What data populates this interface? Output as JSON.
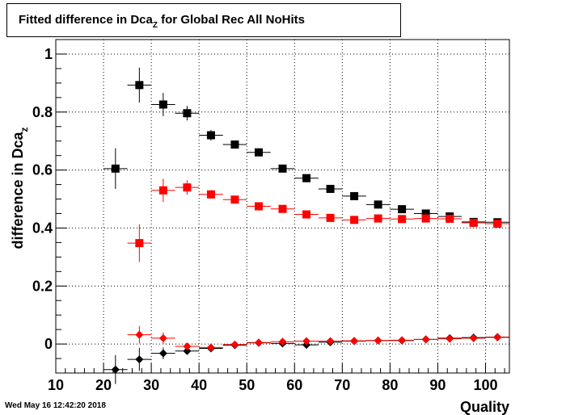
{
  "chart_data": {
    "type": "scatter",
    "title": "Fitted difference in Dca",
    "title_sub": "Z",
    "title_suffix": " for Global Rec All NoHits",
    "xlabel": "Quality",
    "ylabel": "difference in Dca",
    "ylabel_sub": "z",
    "xlim": [
      10,
      105
    ],
    "ylim": [
      -0.1,
      1.05
    ],
    "xticks": [
      10,
      20,
      30,
      40,
      50,
      60,
      70,
      80,
      90,
      100
    ],
    "yticks": [
      0,
      0.2,
      0.4,
      0.6,
      0.8,
      1
    ],
    "ytick_labels": [
      "0",
      "0.2",
      "0.4",
      "0.6",
      "0.8",
      "1"
    ],
    "grid": true,
    "x_bin_halfwidth": 2.5,
    "series": [
      {
        "marker": "square",
        "color": "#000000",
        "x": [
          22.5,
          27.5,
          32.5,
          37.5,
          42.5,
          47.5,
          52.5,
          57.5,
          62.5,
          67.5,
          72.5,
          77.5,
          82.5,
          87.5,
          92.5,
          97.5,
          102.5
        ],
        "y": [
          0.605,
          0.893,
          0.826,
          0.796,
          0.72,
          0.688,
          0.661,
          0.605,
          0.572,
          0.535,
          0.51,
          0.481,
          0.465,
          0.45,
          0.44,
          0.421,
          0.42
        ],
        "err": [
          0.07,
          0.06,
          0.04,
          0.025,
          0.018,
          0.012,
          0.01,
          0.01,
          0.008,
          0.008,
          0.006,
          0.006,
          0.006,
          0.006,
          0.005,
          0.005,
          0.005
        ]
      },
      {
        "marker": "square",
        "color": "#ff0000",
        "x": [
          27.5,
          32.5,
          37.5,
          42.5,
          47.5,
          52.5,
          57.5,
          62.5,
          67.5,
          72.5,
          77.5,
          82.5,
          87.5,
          92.5,
          97.5,
          102.5
        ],
        "y": [
          0.348,
          0.53,
          0.54,
          0.516,
          0.498,
          0.475,
          0.466,
          0.447,
          0.435,
          0.428,
          0.433,
          0.431,
          0.433,
          0.432,
          0.418,
          0.415
        ],
        "err": [
          0.065,
          0.04,
          0.025,
          0.015,
          0.01,
          0.008,
          0.008,
          0.007,
          0.006,
          0.006,
          0.005,
          0.005,
          0.005,
          0.005,
          0.005,
          0.005
        ]
      },
      {
        "marker": "diamond",
        "color": "#000000",
        "x": [
          22.5,
          27.5,
          32.5,
          37.5,
          42.5,
          47.5,
          52.5,
          57.5,
          62.5,
          67.5,
          72.5,
          77.5,
          82.5,
          87.5,
          92.5,
          97.5,
          102.5
        ],
        "y": [
          -0.088,
          -0.053,
          -0.032,
          -0.024,
          -0.015,
          -0.004,
          0.004,
          0.002,
          -0.003,
          0.006,
          0.01,
          0.012,
          0.012,
          0.016,
          0.02,
          0.022,
          0.024
        ],
        "err": [
          0.05,
          0.04,
          0.02,
          0.012,
          0.008,
          0.006,
          0.005,
          0.004,
          0.004,
          0.004,
          0.003,
          0.003,
          0.003,
          0.003,
          0.003,
          0.003,
          0.003
        ]
      },
      {
        "marker": "diamond",
        "color": "#ff0000",
        "x": [
          27.5,
          32.5,
          37.5,
          42.5,
          47.5,
          52.5,
          57.5,
          62.5,
          67.5,
          72.5,
          77.5,
          82.5,
          87.5,
          92.5,
          97.5,
          102.5
        ],
        "y": [
          0.032,
          0.02,
          -0.008,
          -0.012,
          -0.002,
          0.005,
          0.008,
          0.01,
          0.01,
          0.011,
          0.012,
          0.013,
          0.016,
          0.018,
          0.02,
          0.023
        ],
        "err": [
          0.03,
          0.02,
          0.01,
          0.008,
          0.006,
          0.005,
          0.004,
          0.004,
          0.004,
          0.003,
          0.003,
          0.003,
          0.003,
          0.003,
          0.003,
          0.003
        ]
      }
    ]
  },
  "timestamp": "Wed May 16 12:42:20 2018"
}
